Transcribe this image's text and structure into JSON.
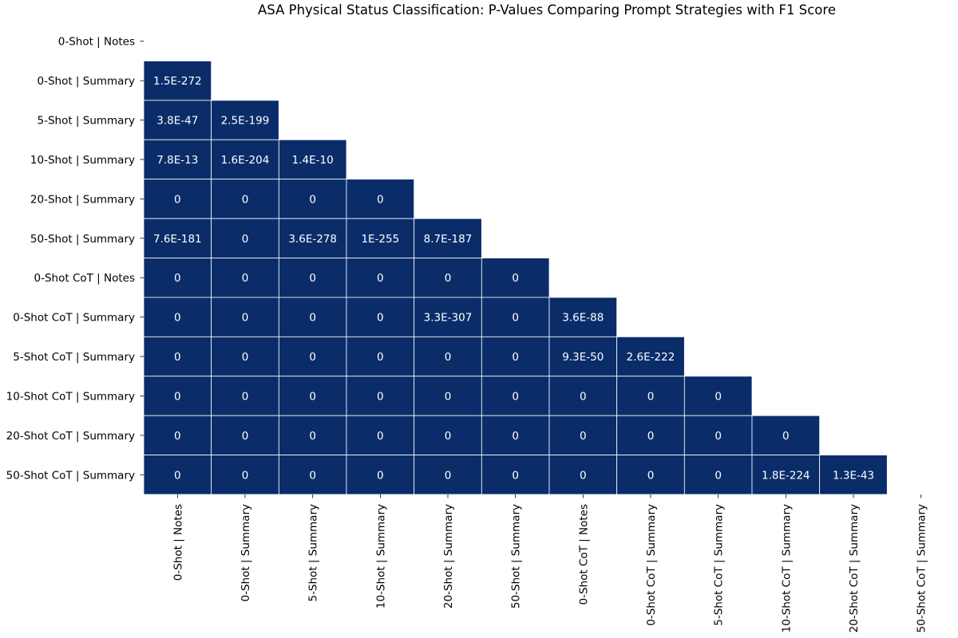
{
  "chart_data": {
    "type": "heatmap",
    "title": "ASA Physical Status Classification: P-Values Comparing Prompt Strategies with F1 Score",
    "xlabel": "",
    "ylabel": "",
    "categories": [
      "0-Shot | Notes",
      "0-Shot | Summary",
      "5-Shot | Summary",
      "10-Shot | Summary",
      "20-Shot | Summary",
      "50-Shot | Summary",
      "0-Shot CoT | Notes",
      "0-Shot CoT | Summary",
      "5-Shot CoT | Summary",
      "10-Shot CoT | Summary",
      "20-Shot CoT | Summary",
      "50-Shot CoT | Summary"
    ],
    "mask": "upper-triangle-including-diagonal",
    "colorbar": false,
    "cell_color": "#0a2d6a",
    "grid_color": "#ffffff",
    "values": [
      [],
      [
        "1.5E-272"
      ],
      [
        "3.8E-47",
        "2.5E-199"
      ],
      [
        "7.8E-13",
        "1.6E-204",
        "1.4E-10"
      ],
      [
        "0",
        "0",
        "0",
        "0"
      ],
      [
        "7.6E-181",
        "0",
        "3.6E-278",
        "1E-255",
        "8.7E-187"
      ],
      [
        "0",
        "0",
        "0",
        "0",
        "0",
        "0"
      ],
      [
        "0",
        "0",
        "0",
        "0",
        "3.3E-307",
        "0",
        "3.6E-88"
      ],
      [
        "0",
        "0",
        "0",
        "0",
        "0",
        "0",
        "9.3E-50",
        "2.6E-222"
      ],
      [
        "0",
        "0",
        "0",
        "0",
        "0",
        "0",
        "0",
        "0",
        "0"
      ],
      [
        "0",
        "0",
        "0",
        "0",
        "0",
        "0",
        "0",
        "0",
        "0",
        "0"
      ],
      [
        "0",
        "0",
        "0",
        "0",
        "0",
        "0",
        "0",
        "0",
        "0",
        "1.8E-224",
        "1.3E-43"
      ]
    ]
  }
}
